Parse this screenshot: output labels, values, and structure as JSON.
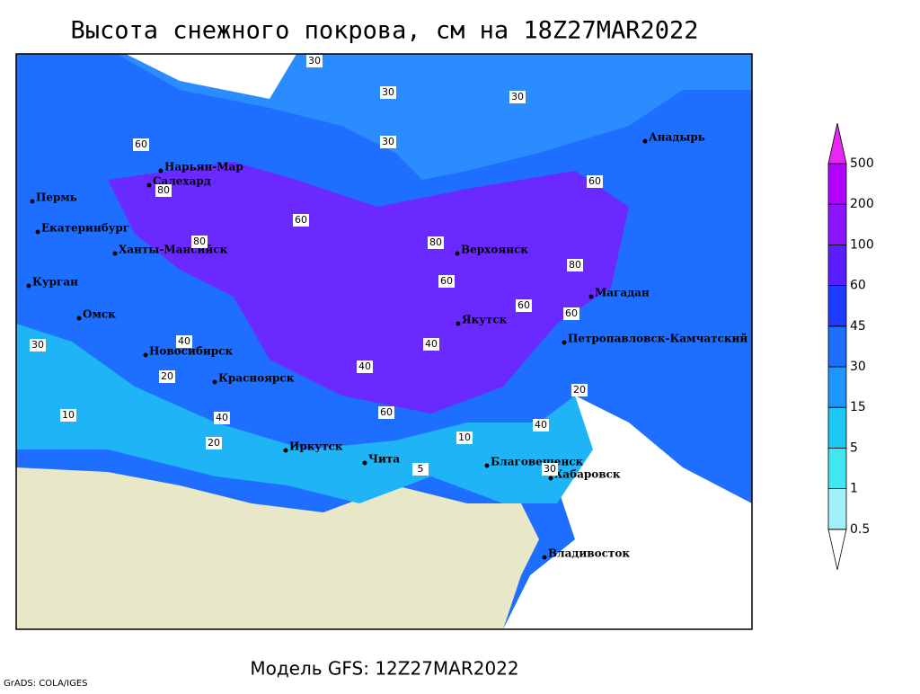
{
  "header": {
    "title": "Высота снежного покрова, см на 18Z27MAR2022"
  },
  "footer": {
    "model": "Модель GFS: 12Z27MAR2022",
    "credit": "GrADS: COLA/IGES"
  },
  "colorbar": {
    "levels": [
      0.5,
      1,
      5,
      15,
      30,
      45,
      60,
      100,
      200,
      500
    ],
    "colors": [
      "#ffffff",
      "#a0f0fa",
      "#40e6f0",
      "#1ec8f5",
      "#1e96ff",
      "#1e6eff",
      "#1e3cff",
      "#5a1eff",
      "#8c14ff",
      "#b400ff",
      "#e628f0"
    ]
  },
  "cities": [
    "Анадырь",
    "Нарьян-Мар",
    "Салехард",
    "Пермь",
    "Екатеринбург",
    "Ханты-Мансийск",
    "Курган",
    "Омск",
    "Новосибирск",
    "Красноярск",
    "Верхоянск",
    "Якутск",
    "Магадан",
    "Петропавловск-Камчатский",
    "Иркутск",
    "Чита",
    "Благовещенск",
    "Хабаровск",
    "Владивосток"
  ],
  "contour_labels": [
    30,
    30,
    30,
    30,
    60,
    60,
    80,
    80,
    60,
    60,
    40,
    40,
    60,
    80,
    60,
    40,
    20,
    20,
    10,
    30,
    40,
    60,
    40,
    20,
    10,
    5,
    30,
    80
  ]
}
